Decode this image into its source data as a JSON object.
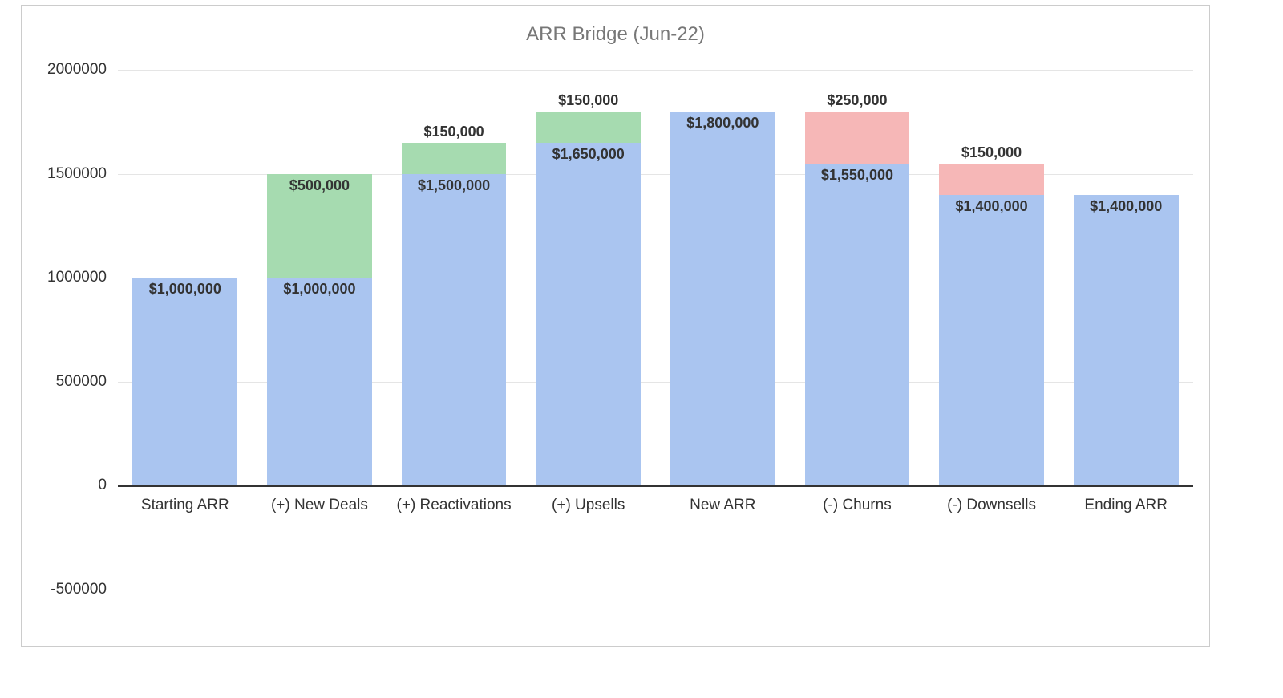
{
  "chart": {
    "type": "waterfall",
    "title": "ARR Bridge (Jun-22)",
    "title_color": "#777777",
    "title_fontsize": 24,
    "background_color": "#ffffff",
    "frame_border_color": "#cccccc",
    "grid_color": "#e5e5e5",
    "baseline_color": "#333333",
    "label_fontsize": 19,
    "value_label_fontsize": 18,
    "value_label_fontweight": 700,
    "bar_width": 0.78,
    "y_axis": {
      "min": -500000,
      "max": 2000000,
      "tick_step": 500000,
      "ticks": [
        -500000,
        0,
        500000,
        1000000,
        1500000,
        2000000
      ]
    },
    "colors": {
      "base": "#aac5f0",
      "increase": "#a6dbb0",
      "decrease": "#f6b7b7"
    },
    "categories": [
      "Starting ARR",
      "(+) New Deals",
      "(+) Reactivations",
      "(+) Upsells",
      "New ARR",
      "(-) Churns",
      "(-) Downsells",
      "Ending ARR"
    ],
    "bars": [
      {
        "category": "Starting ARR",
        "segments": [
          {
            "value": 1000000,
            "kind": "base",
            "label": "$1,000,000",
            "label_pos": "inside-top"
          }
        ]
      },
      {
        "category": "(+) New Deals",
        "segments": [
          {
            "value": 1000000,
            "kind": "base",
            "label": "$1,000,000",
            "label_pos": "inside-top"
          },
          {
            "value": 500000,
            "kind": "increase",
            "label": "$500,000",
            "label_pos": "inside-top"
          }
        ]
      },
      {
        "category": "(+) Reactivations",
        "segments": [
          {
            "value": 1500000,
            "kind": "base",
            "label": "$1,500,000",
            "label_pos": "inside-top"
          },
          {
            "value": 150000,
            "kind": "increase",
            "label": "$150,000",
            "label_pos": "above"
          }
        ]
      },
      {
        "category": "(+) Upsells",
        "segments": [
          {
            "value": 1650000,
            "kind": "base",
            "label": "$1,650,000",
            "label_pos": "inside-top"
          },
          {
            "value": 150000,
            "kind": "increase",
            "label": "$150,000",
            "label_pos": "above"
          }
        ]
      },
      {
        "category": "New ARR",
        "segments": [
          {
            "value": 1800000,
            "kind": "base",
            "label": "$1,800,000",
            "label_pos": "inside-top"
          }
        ]
      },
      {
        "category": "(-) Churns",
        "segments": [
          {
            "value": 1550000,
            "kind": "base",
            "label": "$1,550,000",
            "label_pos": "inside-top"
          },
          {
            "value": 250000,
            "kind": "decrease",
            "label": "$250,000",
            "label_pos": "above"
          }
        ]
      },
      {
        "category": "(-) Downsells",
        "segments": [
          {
            "value": 1400000,
            "kind": "base",
            "label": "$1,400,000",
            "label_pos": "inside-top"
          },
          {
            "value": 150000,
            "kind": "decrease",
            "label": "$150,000",
            "label_pos": "above"
          }
        ]
      },
      {
        "category": "Ending ARR",
        "segments": [
          {
            "value": 1400000,
            "kind": "base",
            "label": "$1,400,000",
            "label_pos": "inside-top"
          }
        ]
      }
    ]
  }
}
